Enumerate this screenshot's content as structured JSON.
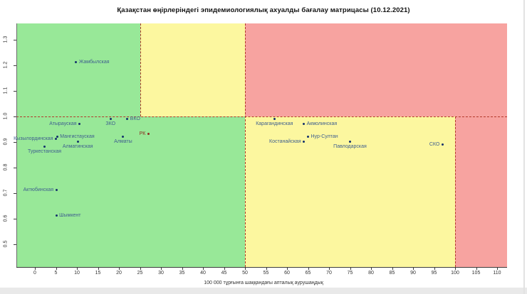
{
  "page": {
    "background": "#ffffff"
  },
  "chart_data": {
    "type": "scatter",
    "title": "Қазақстан өңірлеріндегі эпидемиологиялық ахуалды бағалау матрицасы  (10.12.2021)",
    "xlabel": "100 000 тұрғынға шаққандағы апталық аурушаңдық",
    "ylabel": "",
    "xlim": [
      0,
      110
    ],
    "ylim": [
      0.5,
      1.3
    ],
    "x_ticks": [
      0,
      5,
      10,
      15,
      20,
      25,
      30,
      35,
      40,
      45,
      50,
      55,
      60,
      65,
      70,
      75,
      80,
      85,
      90,
      95,
      100,
      105,
      110
    ],
    "y_ticks": [
      0.5,
      0.6,
      0.7,
      0.8,
      0.9,
      1.0,
      1.1,
      1.2,
      1.3
    ],
    "grid": false,
    "legend": "none",
    "colors": {
      "zone_green": "#98e898",
      "zone_yellow": "#fcf79f",
      "zone_red": "#f7a3a0",
      "dash": "#b3392b",
      "point": "#14306b",
      "point_label": "#40608f",
      "rk_accent": "#8b2e21"
    },
    "zones": [
      {
        "x_from": "min",
        "x_to": 25,
        "y_from": 1.0,
        "y_to": "max",
        "level": "green"
      },
      {
        "x_from": 25,
        "x_to": 50,
        "y_from": 1.0,
        "y_to": "max",
        "level": "yellow"
      },
      {
        "x_from": 50,
        "x_to": "max",
        "y_from": 1.0,
        "y_to": "max",
        "level": "red"
      },
      {
        "x_from": "min",
        "x_to": 50,
        "y_from": "min",
        "y_to": 1.0,
        "level": "green"
      },
      {
        "x_from": 50,
        "x_to": 100,
        "y_from": "min",
        "y_to": 1.0,
        "level": "yellow"
      },
      {
        "x_from": 100,
        "x_to": "max",
        "y_from": "min",
        "y_to": 1.0,
        "level": "red"
      }
    ],
    "threshold_lines": [
      {
        "orient": "h",
        "at": 1.0,
        "span_from": "min",
        "span_to": "max"
      },
      {
        "orient": "v",
        "at": 25,
        "span_from": 1.0,
        "span_to": "max"
      },
      {
        "orient": "v",
        "at": 50,
        "span_from": "min",
        "span_to": "max"
      },
      {
        "orient": "v",
        "at": 100,
        "span_from": "min",
        "span_to": 1.0
      }
    ],
    "points": [
      {
        "name": "Жамбылская",
        "x": 9.8,
        "y": 1.21,
        "side": "right"
      },
      {
        "name": "Атырауская",
        "x": 10.6,
        "y": 0.97,
        "side": "left"
      },
      {
        "name": "ЗКО",
        "x": 18,
        "y": 0.99,
        "side": "below"
      },
      {
        "name": "ВКО",
        "x": 22,
        "y": 0.99,
        "side": "right"
      },
      {
        "name": "РК",
        "x": 27,
        "y": 0.93,
        "side": "left",
        "accent": true
      },
      {
        "name": "Алматы",
        "x": 21,
        "y": 0.92,
        "side": "below"
      },
      {
        "name": "Мангистауская",
        "x": 5.3,
        "y": 0.92,
        "side": "right"
      },
      {
        "name": "Кызылординская",
        "x": 5.0,
        "y": 0.91,
        "side": "left"
      },
      {
        "name": "Алматинская",
        "x": 10.2,
        "y": 0.9,
        "side": "below"
      },
      {
        "name": "Туркестанская",
        "x": 2.3,
        "y": 0.88,
        "side": "below"
      },
      {
        "name": "Актюбинская",
        "x": 5.1,
        "y": 0.71,
        "side": "left"
      },
      {
        "name": "Шымкент",
        "x": 5.1,
        "y": 0.61,
        "side": "right"
      },
      {
        "name": "Карагандинская",
        "x": 57,
        "y": 0.99,
        "side": "below"
      },
      {
        "name": "Акмолинская",
        "x": 64,
        "y": 0.97,
        "side": "right"
      },
      {
        "name": "Нур-Султан",
        "x": 65,
        "y": 0.92,
        "side": "right"
      },
      {
        "name": "Костанайская",
        "x": 64,
        "y": 0.9,
        "side": "left"
      },
      {
        "name": "Павлодарская",
        "x": 75,
        "y": 0.9,
        "side": "below"
      },
      {
        "name": "СКО",
        "x": 97,
        "y": 0.89,
        "side": "left"
      }
    ]
  }
}
